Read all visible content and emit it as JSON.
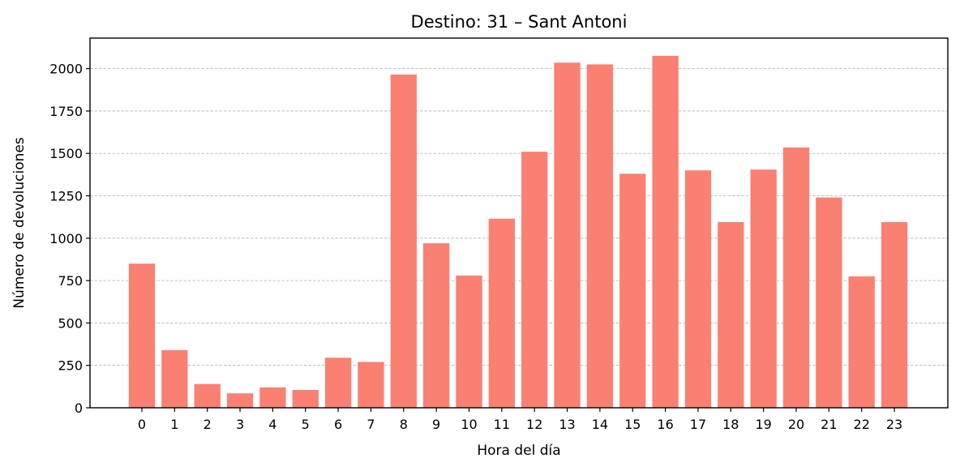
{
  "chart_data": {
    "type": "bar",
    "title": "Destino: 31 – Sant Antoni",
    "xlabel": "Hora del día",
    "ylabel": "Número de devoluciones",
    "categories": [
      "0",
      "1",
      "2",
      "3",
      "4",
      "5",
      "6",
      "7",
      "8",
      "9",
      "10",
      "11",
      "12",
      "13",
      "14",
      "15",
      "16",
      "17",
      "18",
      "19",
      "20",
      "21",
      "22",
      "23"
    ],
    "values": [
      850,
      340,
      140,
      85,
      120,
      105,
      295,
      270,
      1965,
      970,
      780,
      1115,
      1510,
      2035,
      2025,
      1380,
      2075,
      1400,
      1095,
      1405,
      1535,
      1240,
      775,
      1095
    ],
    "ylim": [
      0,
      2180
    ],
    "yticks": [
      0,
      250,
      500,
      750,
      1000,
      1250,
      1500,
      1750,
      2000
    ],
    "grid": "y-dashed",
    "bar_color": "#fa8072"
  }
}
